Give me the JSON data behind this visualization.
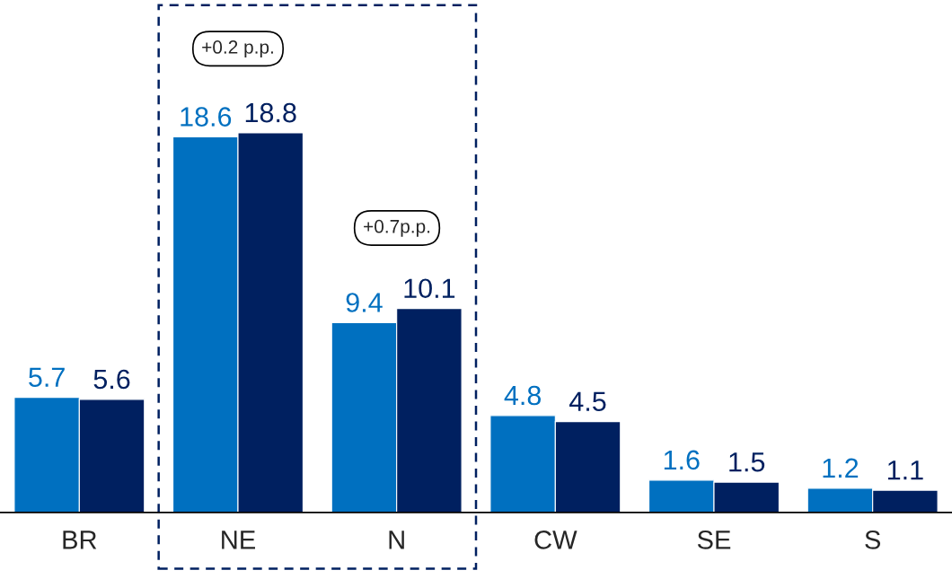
{
  "chart_data": {
    "type": "bar",
    "categories": [
      "BR",
      "NE",
      "N",
      "CW",
      "SE",
      "S"
    ],
    "series": [
      {
        "color": "#0070c0",
        "values": [
          5.7,
          18.6,
          9.4,
          4.8,
          1.6,
          1.2
        ]
      },
      {
        "color": "#002060",
        "values": [
          5.6,
          18.8,
          10.1,
          4.5,
          1.5,
          1.1
        ]
      }
    ],
    "data_labels": true,
    "annotations": [
      "+0.2 p.p.",
      "+0.7p.p."
    ],
    "grid": false,
    "legend": false
  }
}
